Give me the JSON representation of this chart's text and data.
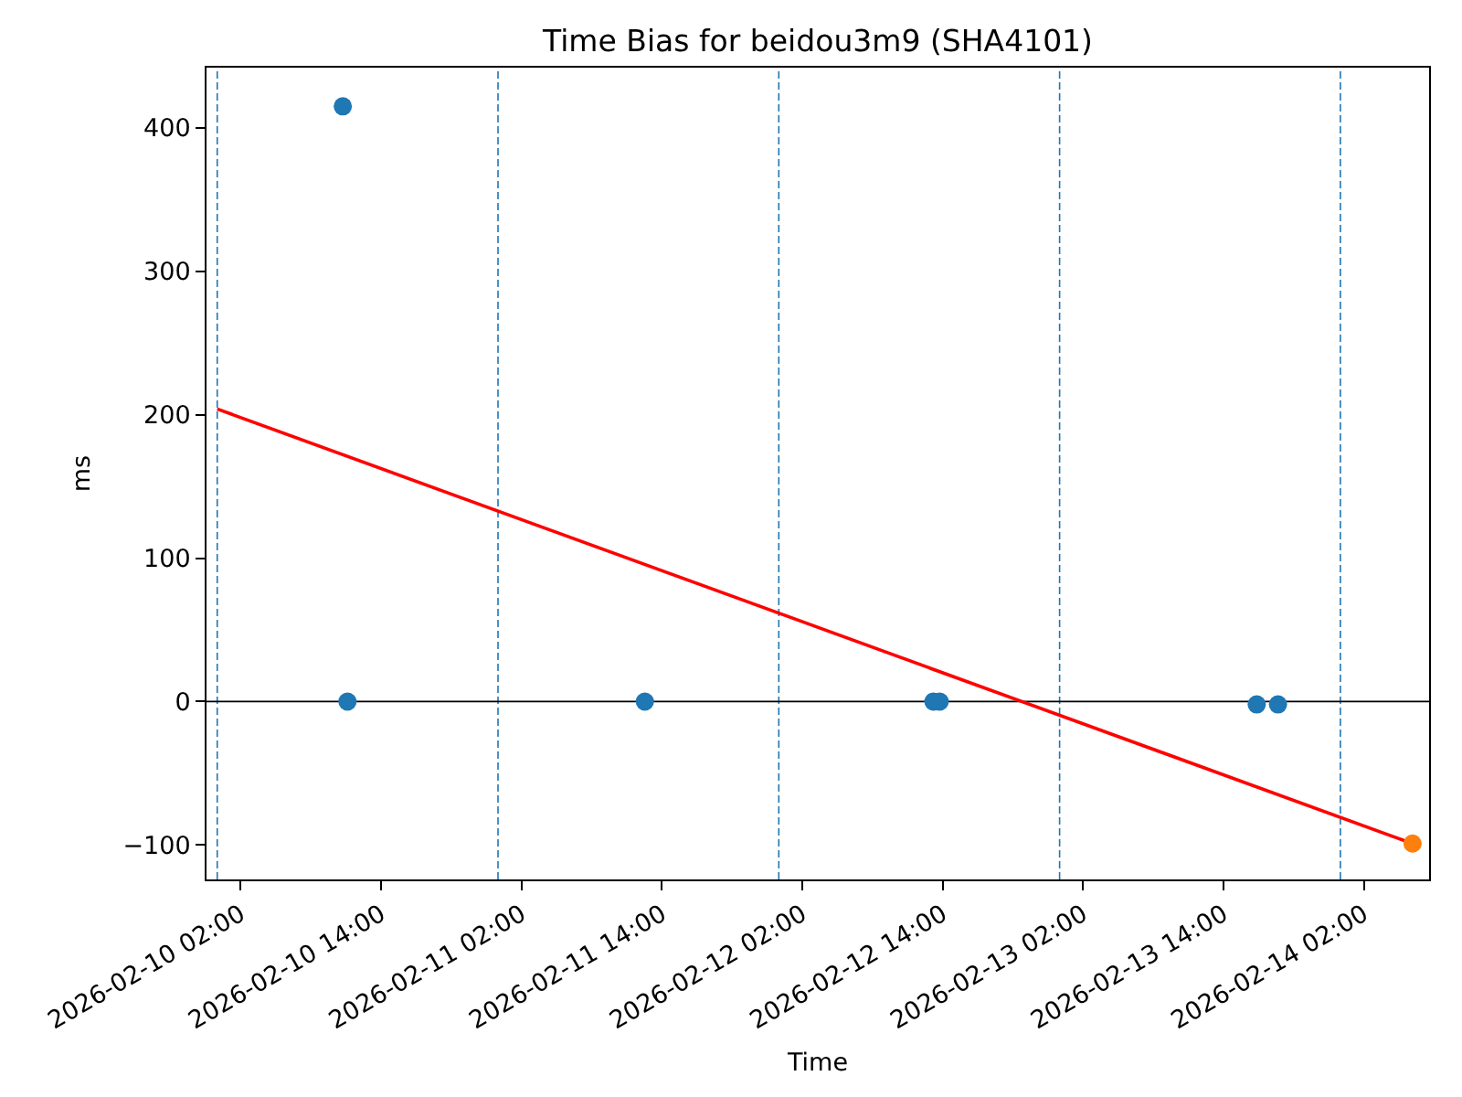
{
  "chart_data": {
    "type": "scatter",
    "title": "Time Bias for beidou3m9 (SHA4101)",
    "xlabel": "Time",
    "ylabel": "ms",
    "marker": "circle",
    "series": [
      {
        "color": "#1f77b4",
        "x": [
          "2026-02-10T10:44",
          "2026-02-10T11:08",
          "2026-02-11T12:33",
          "2026-02-12T13:13",
          "2026-02-12T13:45",
          "2026-02-13T16:51",
          "2026-02-13T18:40"
        ],
        "values": [
          415,
          0,
          0,
          0,
          0,
          -2,
          -2
        ]
      },
      {
        "type": "line",
        "marker": "none",
        "color": "#ff0000",
        "x": [
          "2026-02-10T00:00",
          "2026-02-14T06:10"
        ],
        "values": [
          204,
          -99
        ]
      },
      {
        "color": "#ff7f0e",
        "x": [
          "2026-02-14T06:10"
        ],
        "values": [
          -99
        ]
      }
    ],
    "xlim": [
      "2026-02-09T23:05",
      "2026-02-14T07:35"
    ],
    "xticks": [
      {
        "value": "2026-02-10T02:00",
        "label": "2026-02-10 02:00"
      },
      {
        "value": "2026-02-10T14:00",
        "label": "2026-02-10 14:00"
      },
      {
        "value": "2026-02-11T02:00",
        "label": "2026-02-11 02:00"
      },
      {
        "value": "2026-02-11T14:00",
        "label": "2026-02-11 14:00"
      },
      {
        "value": "2026-02-12T02:00",
        "label": "2026-02-12 02:00"
      },
      {
        "value": "2026-02-12T14:00",
        "label": "2026-02-12 14:00"
      },
      {
        "value": "2026-02-13T02:00",
        "label": "2026-02-13 02:00"
      },
      {
        "value": "2026-02-13T14:00",
        "label": "2026-02-13 14:00"
      },
      {
        "value": "2026-02-14T02:00",
        "label": "2026-02-14 02:00"
      }
    ],
    "ylim": [
      -124,
      442
    ],
    "yticks": [
      -100,
      0,
      100,
      200,
      300,
      400
    ],
    "ref_lines": [
      {
        "axis": "x",
        "value": "2026-02-10T00:00",
        "color": "#1f77b4",
        "line_style": "dashed"
      },
      {
        "axis": "x",
        "value": "2026-02-11T00:00",
        "color": "#1f77b4",
        "line_style": "dashed"
      },
      {
        "axis": "x",
        "value": "2026-02-12T00:00",
        "color": "#1f77b4",
        "line_style": "dashed"
      },
      {
        "axis": "x",
        "value": "2026-02-13T00:00",
        "color": "#1f77b4",
        "line_style": "dashed"
      },
      {
        "axis": "x",
        "value": "2026-02-14T00:00",
        "color": "#1f77b4",
        "line_style": "dashed"
      },
      {
        "axis": "y",
        "value": 0,
        "color": "#000000",
        "line_style": "solid"
      }
    ]
  }
}
